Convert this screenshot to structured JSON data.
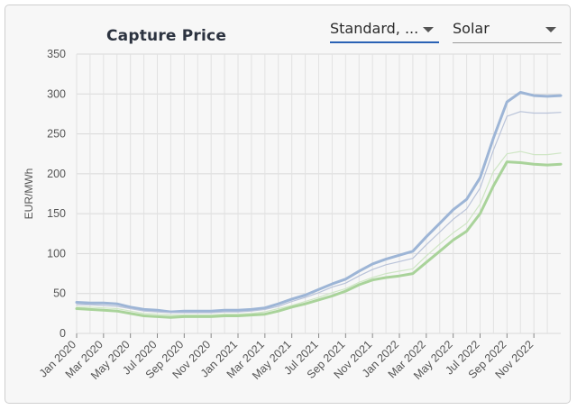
{
  "header": {
    "title": "Capture Price",
    "metric_select": "Standard, ...",
    "technology_select": "Solar"
  },
  "chart_data": {
    "type": "line",
    "title": "Capture Price",
    "ylabel": "EUR/MWh",
    "ylim": [
      0,
      350
    ],
    "yticks": [
      "0",
      "50",
      "100",
      "150",
      "200",
      "250",
      "300",
      "350"
    ],
    "xlim": [
      "2020-01",
      "2023-01"
    ],
    "xticks": [
      "Jan 2020",
      "Mar 2020",
      "May 2020",
      "Jul 2020",
      "Sep 2020",
      "Nov 2020",
      "Jan 2021",
      "Mar 2021",
      "May 2021",
      "Jul 2021",
      "Sep 2021",
      "Nov 2021",
      "Jan 2022",
      "Mar 2022",
      "May 2022",
      "Jul 2022",
      "Sep 2022",
      "Nov 2022"
    ],
    "grid": true,
    "x": [
      "2020-01",
      "2020-02",
      "2020-03",
      "2020-04",
      "2020-05",
      "2020-06",
      "2020-07",
      "2020-08",
      "2020-09",
      "2020-10",
      "2020-11",
      "2020-12",
      "2021-01",
      "2021-02",
      "2021-03",
      "2021-04",
      "2021-05",
      "2021-06",
      "2021-07",
      "2021-08",
      "2021-09",
      "2021-10",
      "2021-11",
      "2021-12",
      "2022-01",
      "2022-02",
      "2022-03",
      "2022-04",
      "2022-05",
      "2022-06",
      "2022-07",
      "2022-08",
      "2022-09",
      "2022-10",
      "2022-11",
      "2022-12",
      "2023-01"
    ],
    "series": [
      {
        "color": "#9db5d6",
        "width": 3,
        "values": [
          39,
          38,
          38,
          37,
          33,
          30,
          29,
          27,
          28,
          28,
          28,
          29,
          29,
          30,
          32,
          37,
          43,
          48,
          55,
          62,
          68,
          78,
          87,
          93,
          98,
          103,
          121,
          138,
          155,
          168,
          195,
          245,
          290,
          302,
          298,
          297,
          298
        ]
      },
      {
        "color": "#b9c3d9",
        "width": 1.2,
        "values": [
          36,
          36,
          35,
          34,
          31,
          28,
          27,
          26,
          26,
          26,
          26,
          27,
          27,
          28,
          30,
          34,
          40,
          45,
          51,
          58,
          63,
          72,
          80,
          86,
          90,
          94,
          111,
          127,
          143,
          156,
          182,
          230,
          272,
          278,
          276,
          276,
          277
        ]
      },
      {
        "color": "#cfe6c5",
        "width": 1.2,
        "values": [
          33,
          33,
          32,
          31,
          28,
          25,
          24,
          23,
          23,
          23,
          23,
          24,
          24,
          25,
          27,
          31,
          35,
          40,
          45,
          51,
          56,
          64,
          70,
          75,
          78,
          81,
          97,
          112,
          126,
          138,
          162,
          203,
          225,
          228,
          224,
          224,
          226
        ]
      },
      {
        "color": "#a9d39a",
        "width": 3,
        "values": [
          31,
          30,
          29,
          28,
          25,
          22,
          21,
          20,
          21,
          21,
          21,
          22,
          22,
          23,
          24,
          28,
          33,
          37,
          42,
          47,
          53,
          61,
          67,
          70,
          72,
          75,
          89,
          103,
          117,
          128,
          150,
          185,
          215,
          214,
          212,
          211,
          212
        ]
      }
    ]
  }
}
